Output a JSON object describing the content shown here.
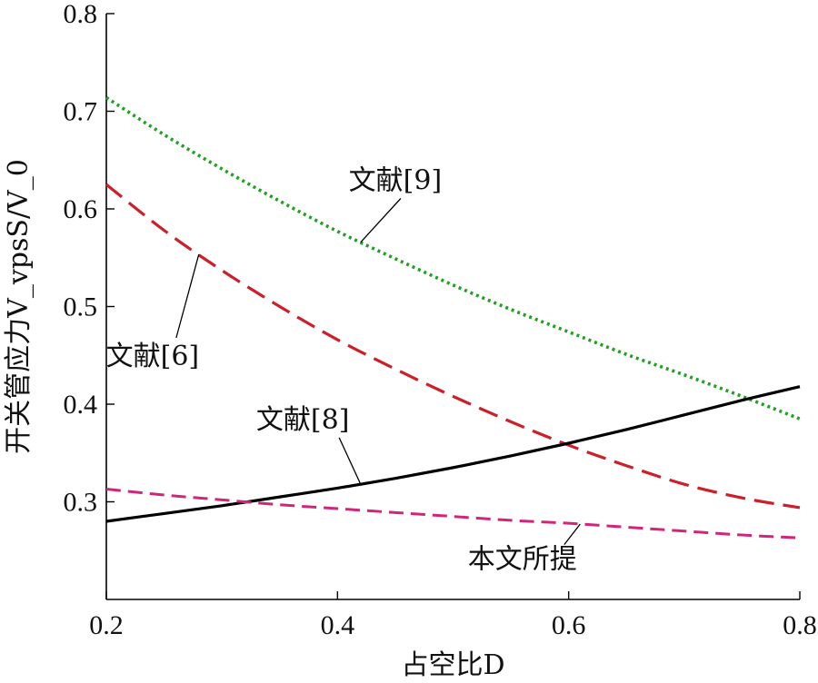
{
  "chart_data": {
    "type": "line",
    "xlabel": "占空比D",
    "ylabel": "开关管应力V_vpsS/V_0",
    "xlim": [
      0.2,
      0.8
    ],
    "ylim": [
      0.2,
      0.8
    ],
    "xticks": [
      "0.2",
      "0.4",
      "0.6",
      "0.8"
    ],
    "yticks": [
      "0.3",
      "0.4",
      "0.5",
      "0.6",
      "0.7",
      "0.8"
    ],
    "grid": false,
    "series": [
      {
        "name": "文献[9]",
        "color": "#22a022",
        "dash": "dotted",
        "x": [
          0.2,
          0.25,
          0.3,
          0.35,
          0.4,
          0.45,
          0.5,
          0.55,
          0.6,
          0.65,
          0.7,
          0.75,
          0.8
        ],
        "y": [
          0.714,
          0.676,
          0.641,
          0.608,
          0.577,
          0.549,
          0.522,
          0.497,
          0.474,
          0.451,
          0.43,
          0.408,
          0.385
        ]
      },
      {
        "name": "文献[6]",
        "color": "#cc1f2a",
        "dash": "dashed",
        "x": [
          0.2,
          0.25,
          0.3,
          0.35,
          0.4,
          0.45,
          0.5,
          0.55,
          0.6,
          0.65,
          0.7,
          0.75,
          0.8
        ],
        "y": [
          0.625,
          0.578,
          0.537,
          0.5,
          0.466,
          0.436,
          0.408,
          0.382,
          0.358,
          0.337,
          0.318,
          0.304,
          0.294
        ]
      },
      {
        "name": "文献[8]",
        "color": "#000000",
        "dash": "solid",
        "x": [
          0.2,
          0.25,
          0.3,
          0.35,
          0.4,
          0.45,
          0.5,
          0.55,
          0.6,
          0.65,
          0.7,
          0.75,
          0.8
        ],
        "y": [
          0.28,
          0.288,
          0.296,
          0.305,
          0.314,
          0.324,
          0.335,
          0.347,
          0.36,
          0.374,
          0.389,
          0.404,
          0.418
        ]
      },
      {
        "name": "本文所提",
        "color": "#d0267a",
        "dash": "dashed-fine",
        "x": [
          0.2,
          0.25,
          0.3,
          0.35,
          0.4,
          0.45,
          0.5,
          0.55,
          0.6,
          0.65,
          0.7,
          0.75,
          0.8
        ],
        "y": [
          0.313,
          0.307,
          0.302,
          0.297,
          0.293,
          0.289,
          0.285,
          0.281,
          0.278,
          0.274,
          0.27,
          0.266,
          0.263
        ]
      }
    ],
    "annotations": [
      {
        "text": "文献[9]",
        "series": 0,
        "point_x": 0.42,
        "label_x": 0.45,
        "label_y": 0.62
      },
      {
        "text": "文献[6]",
        "series": 1,
        "point_x": 0.28,
        "label_x": 0.24,
        "label_y": 0.44
      },
      {
        "text": "文献[8]",
        "series": 2,
        "point_x": 0.42,
        "label_x": 0.37,
        "label_y": 0.375
      },
      {
        "text": "本文所提",
        "series": 3,
        "point_x": 0.61,
        "label_x": 0.56,
        "label_y": 0.232
      }
    ]
  }
}
